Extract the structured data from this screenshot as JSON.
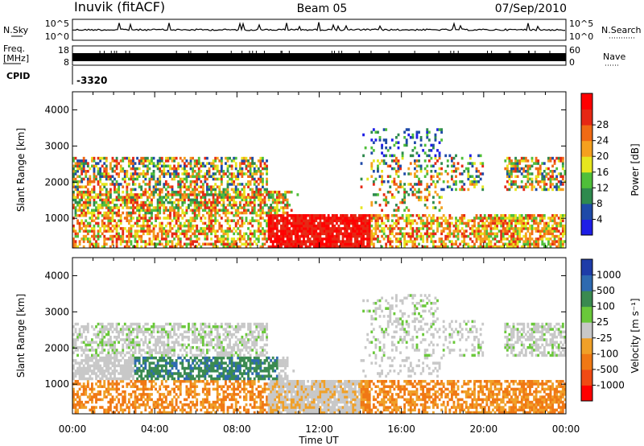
{
  "header": {
    "title_left": "Inuvik (fitACF)",
    "title_center": "Beam 05",
    "title_right": "07/Sep/2010"
  },
  "strips": {
    "nsky_label": "N.Sky",
    "nsky_ticks": [
      "10^5",
      "10^0"
    ],
    "nsearch_label": "N.Search",
    "nsearch_ticks": [
      "10^5",
      "10^0"
    ],
    "freq_label_1": "Freq.",
    "freq_label_2": "[MHz]",
    "freq_ticks": [
      "18",
      "8"
    ],
    "nave_label": "Nave",
    "nave_ticks": [
      "60",
      "0"
    ],
    "cpid_label": "CPID",
    "cpid_value": "-3320"
  },
  "colors": {
    "power": [
      "#1e1ee6",
      "#1e4aa8",
      "#2e8a4e",
      "#4fbf3a",
      "#e6e61e",
      "#f5a01e",
      "#f06a14",
      "#e62814",
      "#ff0000"
    ],
    "velocity": [
      "#1e3ca8",
      "#2e6ab0",
      "#3a8a50",
      "#6ac83a",
      "#c8c8c8",
      "#f0a028",
      "#f07814",
      "#f04a14",
      "#ff0000"
    ]
  },
  "chart_data": [
    {
      "type": "heatmap",
      "name": "power",
      "xlabel": "",
      "ylabel": "Slant Range [km]",
      "x_ticks": [
        "00:00",
        "04:00",
        "08:00",
        "12:00",
        "16:00",
        "20:00",
        "00:00"
      ],
      "y_ticks": [
        1000,
        2000,
        3000,
        4000
      ],
      "ylim": [
        180,
        4500
      ],
      "colorbar_label": "Power [dB]",
      "colorbar_ticks": [
        4,
        8,
        12,
        16,
        20,
        24,
        28
      ]
    },
    {
      "type": "heatmap",
      "name": "velocity",
      "xlabel": "Time UT",
      "ylabel": "Slant Range [km]",
      "x_ticks": [
        "00:00",
        "04:00",
        "08:00",
        "12:00",
        "16:00",
        "20:00",
        "00:00"
      ],
      "y_ticks": [
        1000,
        2000,
        3000,
        4000
      ],
      "ylim": [
        180,
        4500
      ],
      "colorbar_label": "Velocity [m s⁻¹]",
      "colorbar_ticks": [
        "1000",
        "500",
        "100",
        "25",
        "-25",
        "-100",
        "-500",
        "-1000"
      ]
    }
  ]
}
